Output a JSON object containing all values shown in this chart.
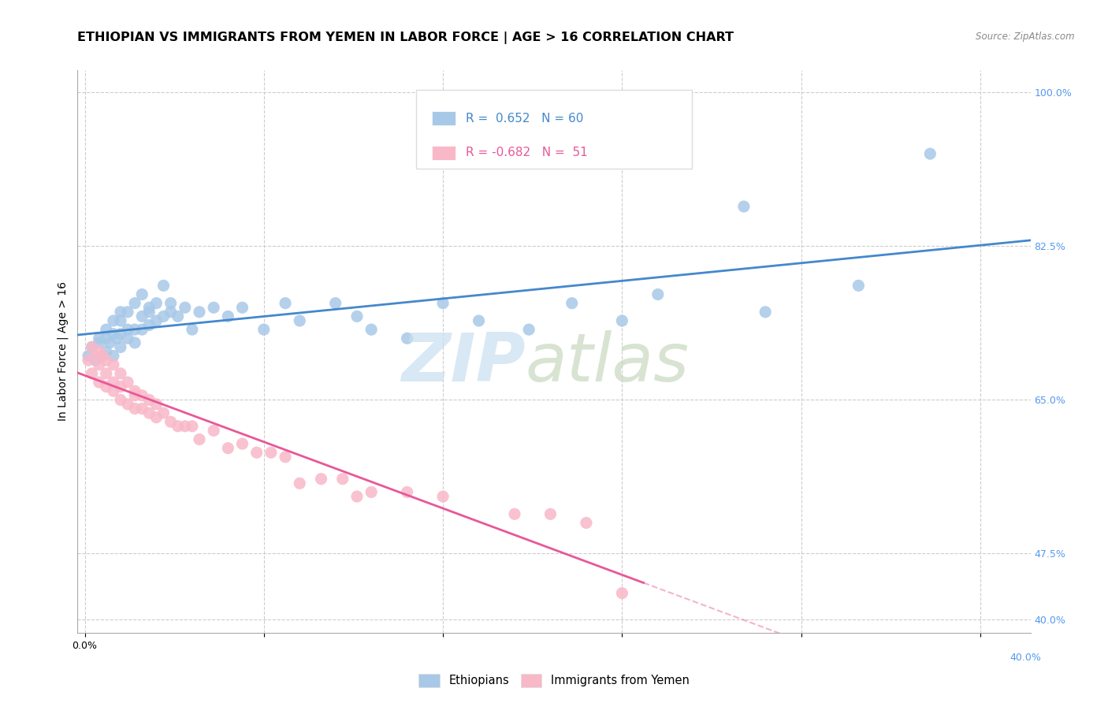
{
  "title": "ETHIOPIAN VS IMMIGRANTS FROM YEMEN IN LABOR FORCE | AGE > 16 CORRELATION CHART",
  "source": "Source: ZipAtlas.com",
  "ylabel": "In Labor Force | Age > 16",
  "xlabel": "",
  "legend_r_blue": "R =  0.652",
  "legend_n_blue": "N = 60",
  "legend_r_pink": "R = -0.682",
  "legend_n_pink": "N =  51",
  "legend_label_blue": "Ethiopians",
  "legend_label_pink": "Immigrants from Yemen",
  "xlim": [
    -0.001,
    0.132
  ],
  "ylim": [
    0.385,
    1.025
  ],
  "yticks_right": [
    1.0,
    0.825,
    0.65,
    0.475,
    0.4
  ],
  "ytick_labels_right": [
    "100.0%",
    "82.5%",
    "65.0%",
    "47.5%",
    "40.0%"
  ],
  "xticks": [
    0.0,
    0.025,
    0.05,
    0.075,
    0.1,
    0.125
  ],
  "xtick_labels_left": "0.0%",
  "xtick_labels_right": "40.0%",
  "blue_color": "#a8c8e8",
  "pink_color": "#f8b8c8",
  "blue_line_color": "#4488cc",
  "pink_line_color": "#e85898",
  "background_color": "#ffffff",
  "grid_color": "#cccccc",
  "blue_scatter_x": [
    0.0005,
    0.001,
    0.0015,
    0.002,
    0.002,
    0.0025,
    0.003,
    0.003,
    0.003,
    0.0035,
    0.004,
    0.004,
    0.004,
    0.0045,
    0.005,
    0.005,
    0.005,
    0.005,
    0.006,
    0.006,
    0.006,
    0.007,
    0.007,
    0.007,
    0.008,
    0.008,
    0.008,
    0.009,
    0.009,
    0.009,
    0.01,
    0.01,
    0.011,
    0.011,
    0.012,
    0.012,
    0.013,
    0.014,
    0.015,
    0.016,
    0.018,
    0.02,
    0.022,
    0.025,
    0.028,
    0.03,
    0.035,
    0.038,
    0.04,
    0.045,
    0.05,
    0.055,
    0.062,
    0.068,
    0.075,
    0.08,
    0.092,
    0.095,
    0.108,
    0.118
  ],
  "blue_scatter_y": [
    0.7,
    0.71,
    0.695,
    0.715,
    0.72,
    0.7,
    0.705,
    0.72,
    0.73,
    0.715,
    0.7,
    0.725,
    0.74,
    0.72,
    0.71,
    0.725,
    0.74,
    0.75,
    0.72,
    0.73,
    0.75,
    0.715,
    0.73,
    0.76,
    0.73,
    0.745,
    0.77,
    0.735,
    0.75,
    0.755,
    0.74,
    0.76,
    0.745,
    0.78,
    0.75,
    0.76,
    0.745,
    0.755,
    0.73,
    0.75,
    0.755,
    0.745,
    0.755,
    0.73,
    0.76,
    0.74,
    0.76,
    0.745,
    0.73,
    0.72,
    0.76,
    0.74,
    0.73,
    0.76,
    0.74,
    0.77,
    0.87,
    0.75,
    0.78,
    0.93
  ],
  "pink_scatter_x": [
    0.0005,
    0.001,
    0.001,
    0.0015,
    0.002,
    0.002,
    0.002,
    0.0025,
    0.003,
    0.003,
    0.003,
    0.004,
    0.004,
    0.004,
    0.005,
    0.005,
    0.005,
    0.006,
    0.006,
    0.007,
    0.007,
    0.007,
    0.008,
    0.008,
    0.009,
    0.009,
    0.01,
    0.01,
    0.011,
    0.012,
    0.013,
    0.014,
    0.015,
    0.016,
    0.018,
    0.02,
    0.022,
    0.024,
    0.026,
    0.028,
    0.03,
    0.033,
    0.036,
    0.038,
    0.04,
    0.045,
    0.05,
    0.06,
    0.065,
    0.07,
    0.075
  ],
  "pink_scatter_y": [
    0.695,
    0.71,
    0.68,
    0.7,
    0.705,
    0.69,
    0.67,
    0.7,
    0.68,
    0.695,
    0.665,
    0.69,
    0.67,
    0.66,
    0.68,
    0.665,
    0.65,
    0.67,
    0.645,
    0.66,
    0.64,
    0.655,
    0.655,
    0.64,
    0.65,
    0.635,
    0.645,
    0.63,
    0.635,
    0.625,
    0.62,
    0.62,
    0.62,
    0.605,
    0.615,
    0.595,
    0.6,
    0.59,
    0.59,
    0.585,
    0.555,
    0.56,
    0.56,
    0.54,
    0.545,
    0.545,
    0.54,
    0.52,
    0.52,
    0.51,
    0.43
  ],
  "title_fontsize": 11.5,
  "axis_label_fontsize": 10,
  "tick_fontsize": 9,
  "legend_fontsize": 11
}
